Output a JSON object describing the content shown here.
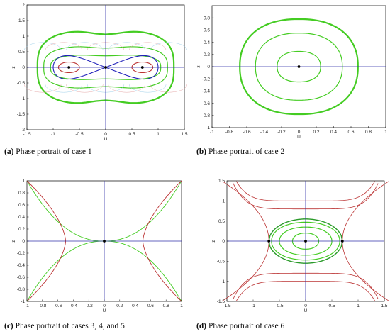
{
  "colors": {
    "green": "#44cc22",
    "dark_green": "#2a9a2a",
    "blue": "#2222bb",
    "red": "#bb3333",
    "light_blue": "#9ed0ea",
    "light_red": "#e5a8a8",
    "axis_blue": "#3333aa",
    "point": "#000000"
  },
  "chart_data": [
    {
      "id": "a",
      "type": "line",
      "caption_label": "(a)",
      "caption_text": " Phase portrait of case 1",
      "xlabel": "U",
      "ylabel": "z",
      "xlim": [
        -1.5,
        1.5
      ],
      "ylim": [
        -2,
        2
      ],
      "xticks": [
        "-1.5",
        "-1",
        "-0.5",
        "0",
        "0.5",
        "1",
        "1.5"
      ],
      "yticks": [
        "-2",
        "-1.5",
        "-1",
        "-0.5",
        "0",
        "0.5",
        "1",
        "1.5",
        "2"
      ],
      "equilibrium_points": [
        [
          -0.7,
          0
        ],
        [
          0,
          0
        ],
        [
          0.7,
          0
        ]
      ],
      "series": [
        {
          "color": "green",
          "kind": "closed_curve",
          "x_extent": 1.3,
          "y_extent": 1.2
        },
        {
          "color": "green",
          "kind": "closed_curve",
          "x_extent": 1.18,
          "y_extent": 0.7
        },
        {
          "color": "green",
          "kind": "closed_curve",
          "x_extent": 1.05,
          "y_extent": 0.42
        },
        {
          "color": "blue",
          "kind": "separatrix_lobes",
          "x_extent": 1.0,
          "y_extent": 0.58
        },
        {
          "color": "red",
          "kind": "centers",
          "centers": [
            -0.7,
            0.7
          ],
          "x_radius": 0.2,
          "y_radius": 0.17
        }
      ]
    },
    {
      "id": "b",
      "type": "line",
      "caption_label": "(b)",
      "caption_text": " Phase portrait of case 2",
      "xlabel": "U",
      "ylabel": "z",
      "xlim": [
        -1,
        1
      ],
      "ylim": [
        -1,
        1
      ],
      "xticks": [
        "-1",
        "-0.8",
        "-0.6",
        "-0.4",
        "-0.2",
        "0",
        "0.2",
        "0.4",
        "0.6",
        "0.8",
        "1"
      ],
      "yticks": [
        "-1",
        "-0.8",
        "-0.6",
        "-0.4",
        "-0.2",
        "0",
        "0.2",
        "0.4",
        "0.6",
        "0.8"
      ],
      "equilibrium_points": [
        [
          0,
          0
        ]
      ],
      "series": [
        {
          "color": "green",
          "kind": "closed_curve",
          "x_extent": 0.25,
          "y_extent": 0.25
        },
        {
          "color": "green",
          "kind": "closed_curve",
          "x_extent": 0.5,
          "y_extent": 0.55
        },
        {
          "color": "green",
          "kind": "closed_curve",
          "x_extent": 0.68,
          "y_extent": 0.78
        }
      ]
    },
    {
      "id": "c",
      "type": "line",
      "caption_label": "(c)",
      "caption_text": " Phase portrait of cases 3, 4, and 5",
      "xlabel": "U",
      "ylabel": "z",
      "xlim": [
        -1,
        1
      ],
      "ylim": [
        -1,
        1
      ],
      "xticks": [
        "-1",
        "-0.8",
        "-0.6",
        "-0.4",
        "-0.2",
        "0",
        "0.2",
        "0.4",
        "0.6",
        "0.8",
        "1"
      ],
      "yticks": [
        "-1",
        "-0.8",
        "-0.6",
        "-0.4",
        "-0.2",
        "0",
        "0.2",
        "0.4",
        "0.6",
        "0.8",
        "1"
      ],
      "equilibrium_points": [
        [
          0,
          0
        ]
      ],
      "series": [
        {
          "color": "green",
          "kind": "cusp_pair",
          "reach": 1.0
        },
        {
          "color": "red",
          "kind": "side_branches",
          "vertex": 0.5,
          "reach": 1.0
        }
      ]
    },
    {
      "id": "d",
      "type": "line",
      "caption_label": "(d)",
      "caption_text": " Phase portrait of case 6",
      "xlabel": "U",
      "ylabel": "z",
      "xlim": [
        -1.5,
        1.5
      ],
      "ylim": [
        -1.5,
        1.5
      ],
      "xticks": [
        "-1.5",
        "-1",
        "-0.5",
        "0",
        "0.5",
        "1",
        "1.5"
      ],
      "yticks": [
        "-1.5",
        "-1",
        "-0.5",
        "0",
        "0.5",
        "1",
        "1.5"
      ],
      "equilibrium_points": [
        [
          -0.7,
          0
        ],
        [
          0,
          0
        ],
        [
          0.7,
          0
        ]
      ],
      "series": [
        {
          "color": "green",
          "kind": "closed_curve",
          "x_extent": 0.25,
          "y_extent": 0.2
        },
        {
          "color": "green",
          "kind": "closed_curve",
          "x_extent": 0.5,
          "y_extent": 0.35
        },
        {
          "color": "green",
          "kind": "closed_curve",
          "x_extent": 0.65,
          "y_extent": 0.47
        },
        {
          "color": "red",
          "kind": "saddle_separatrix",
          "saddles": [
            -0.7,
            0.7
          ]
        },
        {
          "color": "red",
          "kind": "outer_branches",
          "levels": [
            0.8,
            1.0
          ]
        }
      ]
    }
  ]
}
